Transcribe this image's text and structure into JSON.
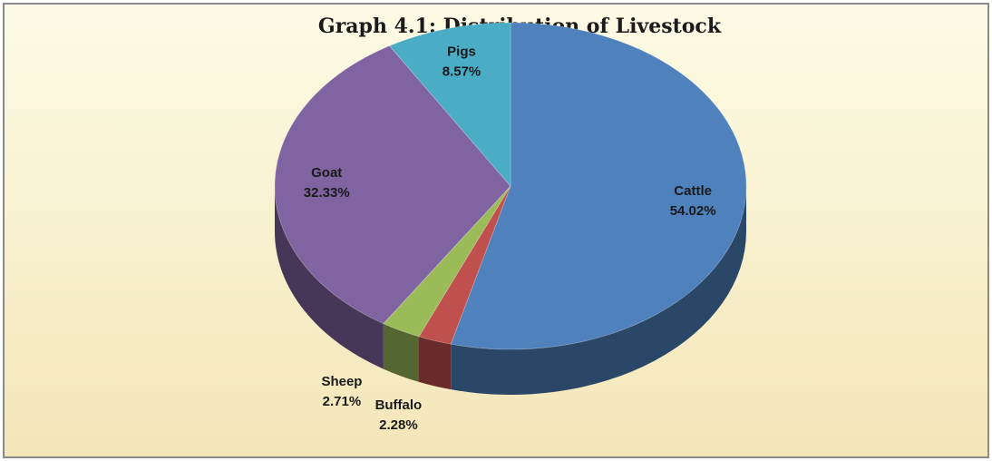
{
  "chart_data": {
    "type": "pie3d",
    "title": "Graph 4.1: Distribution of Livestock",
    "categories": [
      "Cattle",
      "Buffalo",
      "Sheep",
      "Goat",
      "Pigs"
    ],
    "values": [
      54.02,
      2.28,
      2.71,
      32.33,
      8.57
    ],
    "value_labels": [
      "54.02%",
      "2.28%",
      "2.71%",
      "32.33%",
      "8.57%"
    ],
    "colors": [
      "#4f81bd",
      "#c0504d",
      "#9bbb59",
      "#8064a2",
      "#4bacc6"
    ]
  }
}
